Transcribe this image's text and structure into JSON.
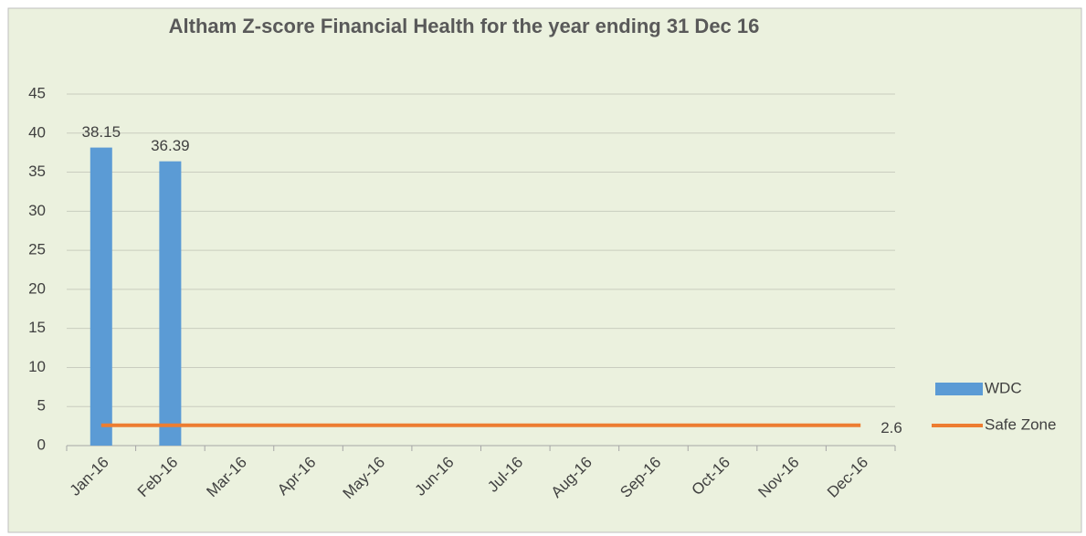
{
  "chart_data": {
    "type": "bar",
    "title": "Altham Z-score Financial Health for the year ending 31 Dec 16",
    "categories": [
      "Jan-16",
      "Feb-16",
      "Mar-16",
      "Apr-16",
      "May-16",
      "Jun-16",
      "Jul-16",
      "Aug-16",
      "Sep-16",
      "Oct-16",
      "Nov-16",
      "Dec-16"
    ],
    "series": [
      {
        "name": "WDC",
        "type": "bar",
        "color": "#5b9bd5",
        "values": [
          38.15,
          36.39,
          null,
          null,
          null,
          null,
          null,
          null,
          null,
          null,
          null,
          null
        ],
        "value_labels": [
          "38.15",
          "36.39",
          null,
          null,
          null,
          null,
          null,
          null,
          null,
          null,
          null,
          null
        ]
      },
      {
        "name": "Safe Zone",
        "type": "line",
        "color": "#ed7d31",
        "values": [
          2.6,
          2.6,
          2.6,
          2.6,
          2.6,
          2.6,
          2.6,
          2.6,
          2.6,
          2.6,
          2.6,
          2.6
        ],
        "value_labels": [
          null,
          null,
          null,
          null,
          null,
          null,
          null,
          null,
          null,
          null,
          null,
          "2.6"
        ]
      }
    ],
    "ylim": [
      0,
      45
    ],
    "yticks": [
      0,
      5,
      10,
      15,
      20,
      25,
      30,
      35,
      40,
      45
    ],
    "grid": true,
    "legend": "right"
  }
}
